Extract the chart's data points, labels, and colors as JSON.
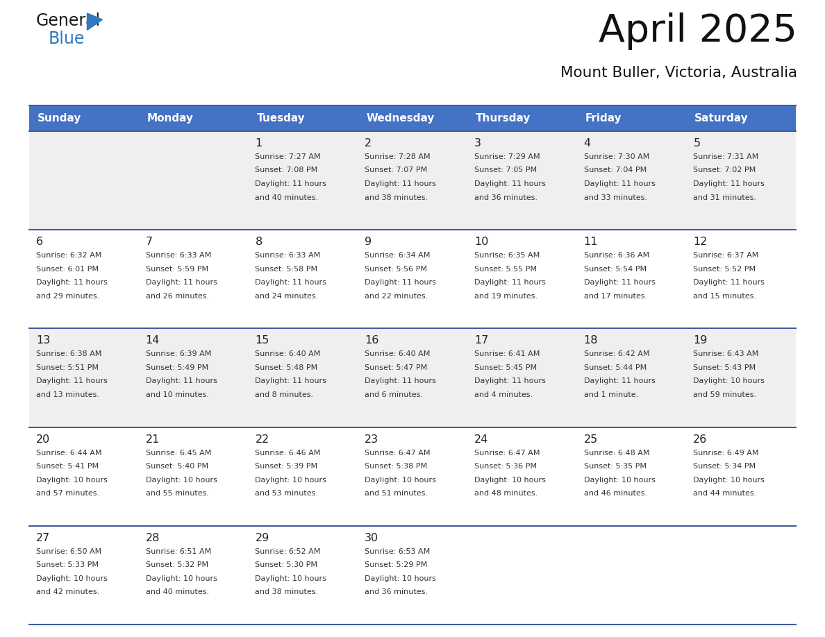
{
  "title": "April 2025",
  "subtitle": "Mount Buller, Victoria, Australia",
  "header_color": "#4472C4",
  "header_text_color": "#FFFFFF",
  "day_headers": [
    "Sunday",
    "Monday",
    "Tuesday",
    "Wednesday",
    "Thursday",
    "Friday",
    "Saturday"
  ],
  "row_bg_colors": [
    "#EFEFEF",
    "#FFFFFF",
    "#EFEFEF",
    "#FFFFFF",
    "#FFFFFF"
  ],
  "separator_color": "#3A5F9F",
  "day_number_color": "#222222",
  "text_color": "#333333",
  "calendar_data": [
    [
      {
        "day": "",
        "sunrise": "",
        "sunset": "",
        "daylight": ""
      },
      {
        "day": "",
        "sunrise": "",
        "sunset": "",
        "daylight": ""
      },
      {
        "day": "1",
        "sunrise": "7:27 AM",
        "sunset": "7:08 PM",
        "daylight": "11 hours and 40 minutes."
      },
      {
        "day": "2",
        "sunrise": "7:28 AM",
        "sunset": "7:07 PM",
        "daylight": "11 hours and 38 minutes."
      },
      {
        "day": "3",
        "sunrise": "7:29 AM",
        "sunset": "7:05 PM",
        "daylight": "11 hours and 36 minutes."
      },
      {
        "day": "4",
        "sunrise": "7:30 AM",
        "sunset": "7:04 PM",
        "daylight": "11 hours and 33 minutes."
      },
      {
        "day": "5",
        "sunrise": "7:31 AM",
        "sunset": "7:02 PM",
        "daylight": "11 hours and 31 minutes."
      }
    ],
    [
      {
        "day": "6",
        "sunrise": "6:32 AM",
        "sunset": "6:01 PM",
        "daylight": "11 hours and 29 minutes."
      },
      {
        "day": "7",
        "sunrise": "6:33 AM",
        "sunset": "5:59 PM",
        "daylight": "11 hours and 26 minutes."
      },
      {
        "day": "8",
        "sunrise": "6:33 AM",
        "sunset": "5:58 PM",
        "daylight": "11 hours and 24 minutes."
      },
      {
        "day": "9",
        "sunrise": "6:34 AM",
        "sunset": "5:56 PM",
        "daylight": "11 hours and 22 minutes."
      },
      {
        "day": "10",
        "sunrise": "6:35 AM",
        "sunset": "5:55 PM",
        "daylight": "11 hours and 19 minutes."
      },
      {
        "day": "11",
        "sunrise": "6:36 AM",
        "sunset": "5:54 PM",
        "daylight": "11 hours and 17 minutes."
      },
      {
        "day": "12",
        "sunrise": "6:37 AM",
        "sunset": "5:52 PM",
        "daylight": "11 hours and 15 minutes."
      }
    ],
    [
      {
        "day": "13",
        "sunrise": "6:38 AM",
        "sunset": "5:51 PM",
        "daylight": "11 hours and 13 minutes."
      },
      {
        "day": "14",
        "sunrise": "6:39 AM",
        "sunset": "5:49 PM",
        "daylight": "11 hours and 10 minutes."
      },
      {
        "day": "15",
        "sunrise": "6:40 AM",
        "sunset": "5:48 PM",
        "daylight": "11 hours and 8 minutes."
      },
      {
        "day": "16",
        "sunrise": "6:40 AM",
        "sunset": "5:47 PM",
        "daylight": "11 hours and 6 minutes."
      },
      {
        "day": "17",
        "sunrise": "6:41 AM",
        "sunset": "5:45 PM",
        "daylight": "11 hours and 4 minutes."
      },
      {
        "day": "18",
        "sunrise": "6:42 AM",
        "sunset": "5:44 PM",
        "daylight": "11 hours and 1 minute."
      },
      {
        "day": "19",
        "sunrise": "6:43 AM",
        "sunset": "5:43 PM",
        "daylight": "10 hours and 59 minutes."
      }
    ],
    [
      {
        "day": "20",
        "sunrise": "6:44 AM",
        "sunset": "5:41 PM",
        "daylight": "10 hours and 57 minutes."
      },
      {
        "day": "21",
        "sunrise": "6:45 AM",
        "sunset": "5:40 PM",
        "daylight": "10 hours and 55 minutes."
      },
      {
        "day": "22",
        "sunrise": "6:46 AM",
        "sunset": "5:39 PM",
        "daylight": "10 hours and 53 minutes."
      },
      {
        "day": "23",
        "sunrise": "6:47 AM",
        "sunset": "5:38 PM",
        "daylight": "10 hours and 51 minutes."
      },
      {
        "day": "24",
        "sunrise": "6:47 AM",
        "sunset": "5:36 PM",
        "daylight": "10 hours and 48 minutes."
      },
      {
        "day": "25",
        "sunrise": "6:48 AM",
        "sunset": "5:35 PM",
        "daylight": "10 hours and 46 minutes."
      },
      {
        "day": "26",
        "sunrise": "6:49 AM",
        "sunset": "5:34 PM",
        "daylight": "10 hours and 44 minutes."
      }
    ],
    [
      {
        "day": "27",
        "sunrise": "6:50 AM",
        "sunset": "5:33 PM",
        "daylight": "10 hours and 42 minutes."
      },
      {
        "day": "28",
        "sunrise": "6:51 AM",
        "sunset": "5:32 PM",
        "daylight": "10 hours and 40 minutes."
      },
      {
        "day": "29",
        "sunrise": "6:52 AM",
        "sunset": "5:30 PM",
        "daylight": "10 hours and 38 minutes."
      },
      {
        "day": "30",
        "sunrise": "6:53 AM",
        "sunset": "5:29 PM",
        "daylight": "10 hours and 36 minutes."
      },
      {
        "day": "",
        "sunrise": "",
        "sunset": "",
        "daylight": ""
      },
      {
        "day": "",
        "sunrise": "",
        "sunset": "",
        "daylight": ""
      },
      {
        "day": "",
        "sunrise": "",
        "sunset": "",
        "daylight": ""
      }
    ]
  ]
}
